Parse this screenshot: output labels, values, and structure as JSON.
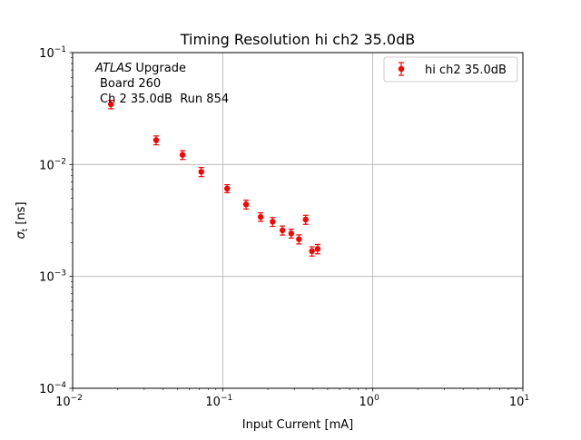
{
  "chart_data": {
    "type": "scatter",
    "title": "Timing Resolution hi ch2 35.0dB",
    "xlabel": "Input Current [mA]",
    "ylabel": "σt [ns]",
    "xscale": "log",
    "yscale": "log",
    "xlim": [
      0.01,
      10
    ],
    "ylim": [
      0.0001,
      0.1
    ],
    "grid": true,
    "legend_position": "top-right",
    "x_ticks": [
      {
        "base": "10",
        "exp": "−2",
        "value": 0.01
      },
      {
        "base": "10",
        "exp": "−1",
        "value": 0.1
      },
      {
        "base": "10",
        "exp": "0",
        "value": 1
      },
      {
        "base": "10",
        "exp": "1",
        "value": 10
      }
    ],
    "y_ticks": [
      {
        "base": "10",
        "exp": "−4",
        "value": 0.0001
      },
      {
        "base": "10",
        "exp": "−3",
        "value": 0.001
      },
      {
        "base": "10",
        "exp": "−2",
        "value": 0.01
      },
      {
        "base": "10",
        "exp": "−1",
        "value": 0.1
      }
    ],
    "annotation": {
      "line1_italic": "ATLAS",
      "line1_rest": " Upgrade",
      "line2": "Board 260",
      "line3": "Ch 2 35.0dB  Run 854"
    },
    "series": [
      {
        "name": "hi ch2 35.0dB",
        "color": "#ff0000",
        "marker": "circle",
        "points": [
          {
            "x": 0.018,
            "y": 0.0345,
            "yerr": 0.003
          },
          {
            "x": 0.036,
            "y": 0.0165,
            "yerr": 0.0015
          },
          {
            "x": 0.054,
            "y": 0.0122,
            "yerr": 0.0011
          },
          {
            "x": 0.072,
            "y": 0.0086,
            "yerr": 0.0008
          },
          {
            "x": 0.107,
            "y": 0.0061,
            "yerr": 0.0005
          },
          {
            "x": 0.143,
            "y": 0.0044,
            "yerr": 0.0004
          },
          {
            "x": 0.179,
            "y": 0.0034,
            "yerr": 0.0003
          },
          {
            "x": 0.215,
            "y": 0.00308,
            "yerr": 0.00028
          },
          {
            "x": 0.25,
            "y": 0.00258,
            "yerr": 0.00024
          },
          {
            "x": 0.286,
            "y": 0.00242,
            "yerr": 0.00022
          },
          {
            "x": 0.322,
            "y": 0.00215,
            "yerr": 0.0002
          },
          {
            "x": 0.357,
            "y": 0.00322,
            "yerr": 0.0003
          },
          {
            "x": 0.393,
            "y": 0.00168,
            "yerr": 0.00016
          },
          {
            "x": 0.429,
            "y": 0.00176,
            "yerr": 0.00017
          }
        ]
      }
    ]
  }
}
